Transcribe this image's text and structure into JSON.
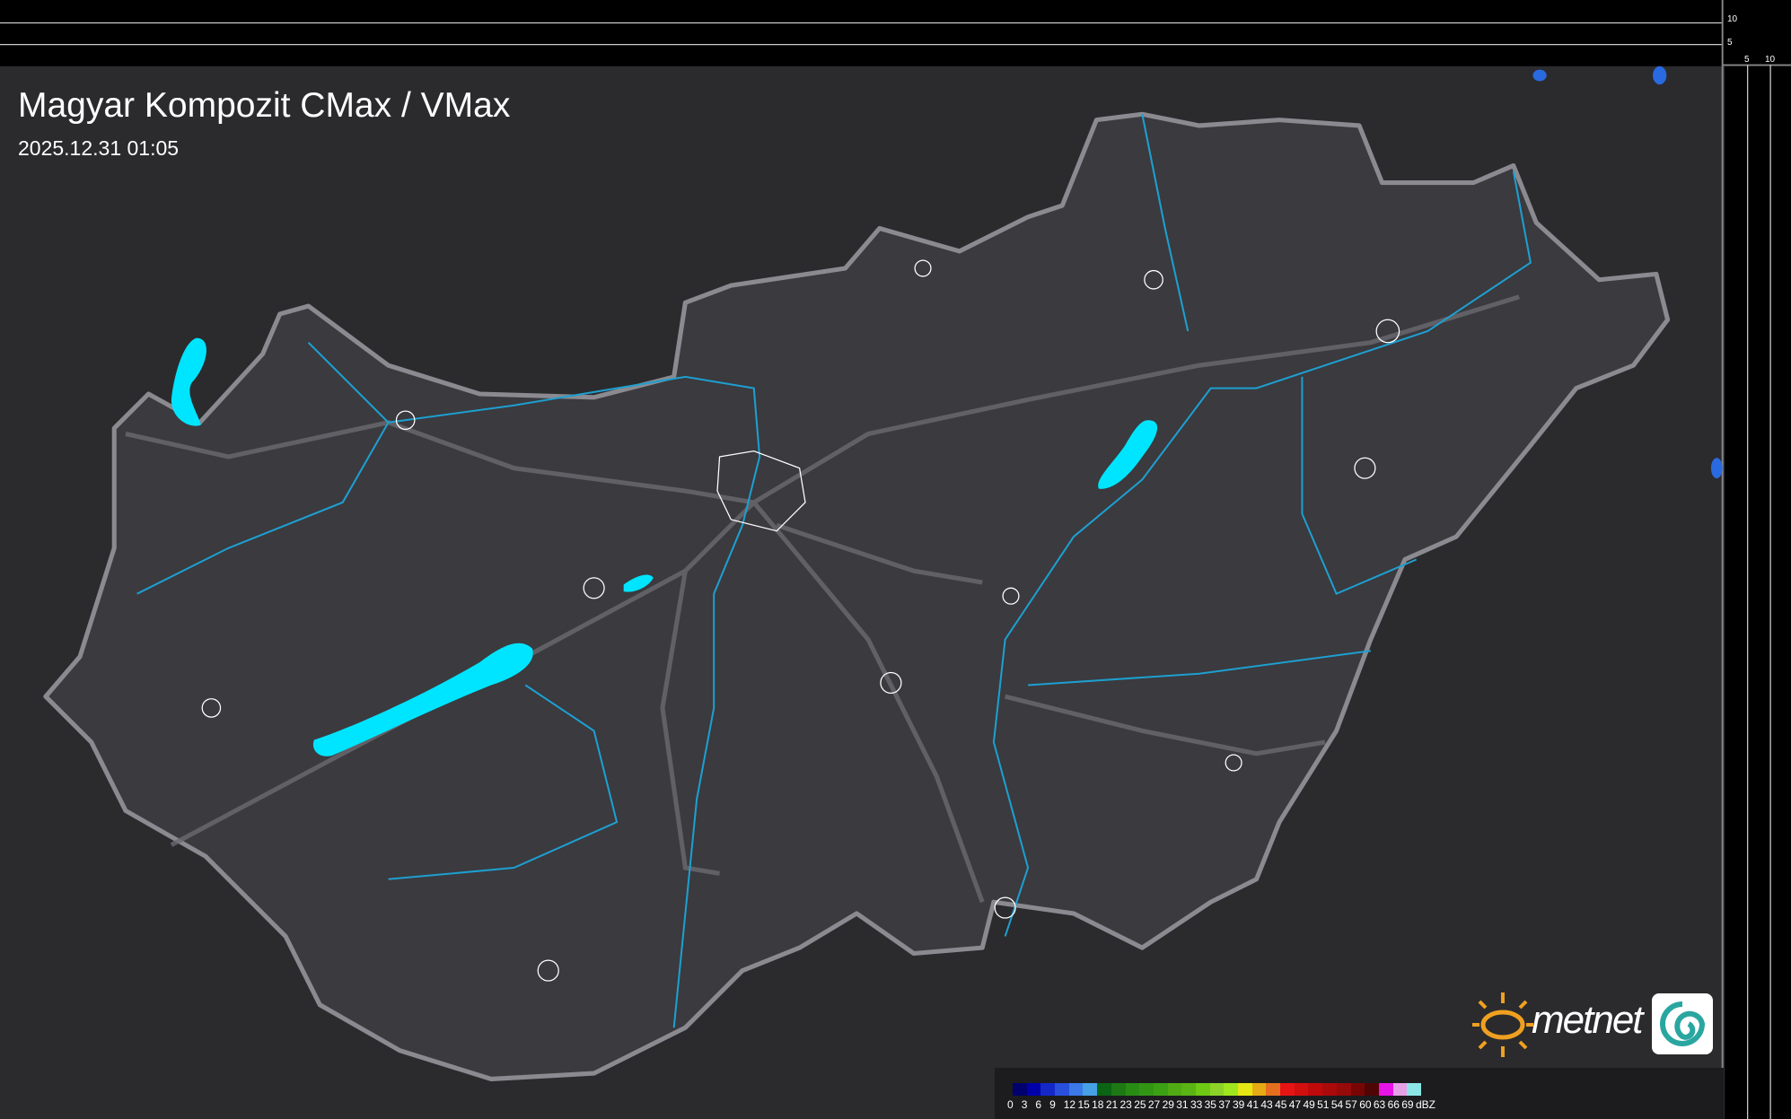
{
  "header": {
    "title": "Magyar Kompozit CMax / VMax",
    "timestamp": "2025.12.31 01:05"
  },
  "cross_section": {
    "vertical_scale": [
      "10",
      "5"
    ],
    "horizontal_scale": [
      "5",
      "10"
    ]
  },
  "logo": {
    "text": "metnet"
  },
  "legend": {
    "unit": "dBZ",
    "labels": [
      "0",
      "3",
      "6",
      "9",
      "12",
      "15",
      "18",
      "21",
      "23",
      "25",
      "27",
      "29",
      "31",
      "33",
      "35",
      "37",
      "39",
      "41",
      "43",
      "45",
      "47",
      "49",
      "51",
      "54",
      "57",
      "60",
      "63",
      "66",
      "69"
    ],
    "colors": [
      "#00006e",
      "#0000a8",
      "#1428c8",
      "#2850dc",
      "#3c78e6",
      "#46a0e6",
      "#0a6414",
      "#1e7814",
      "#288c14",
      "#329614",
      "#3ca014",
      "#50aa14",
      "#5ab414",
      "#6ec814",
      "#8cd228",
      "#a0e61e",
      "#e6e614",
      "#e6aa14",
      "#e66e1e",
      "#e61414",
      "#d20f0f",
      "#be0a0a",
      "#aa0a0a",
      "#960a0a",
      "#780505",
      "#500505",
      "#e614e6",
      "#e6a0e6",
      "#8ce6e6"
    ]
  },
  "colors": {
    "water": "#00e5ff",
    "river": "#1e9fd0",
    "border": "#8a8a90",
    "terrain": "#2a2a2e"
  }
}
